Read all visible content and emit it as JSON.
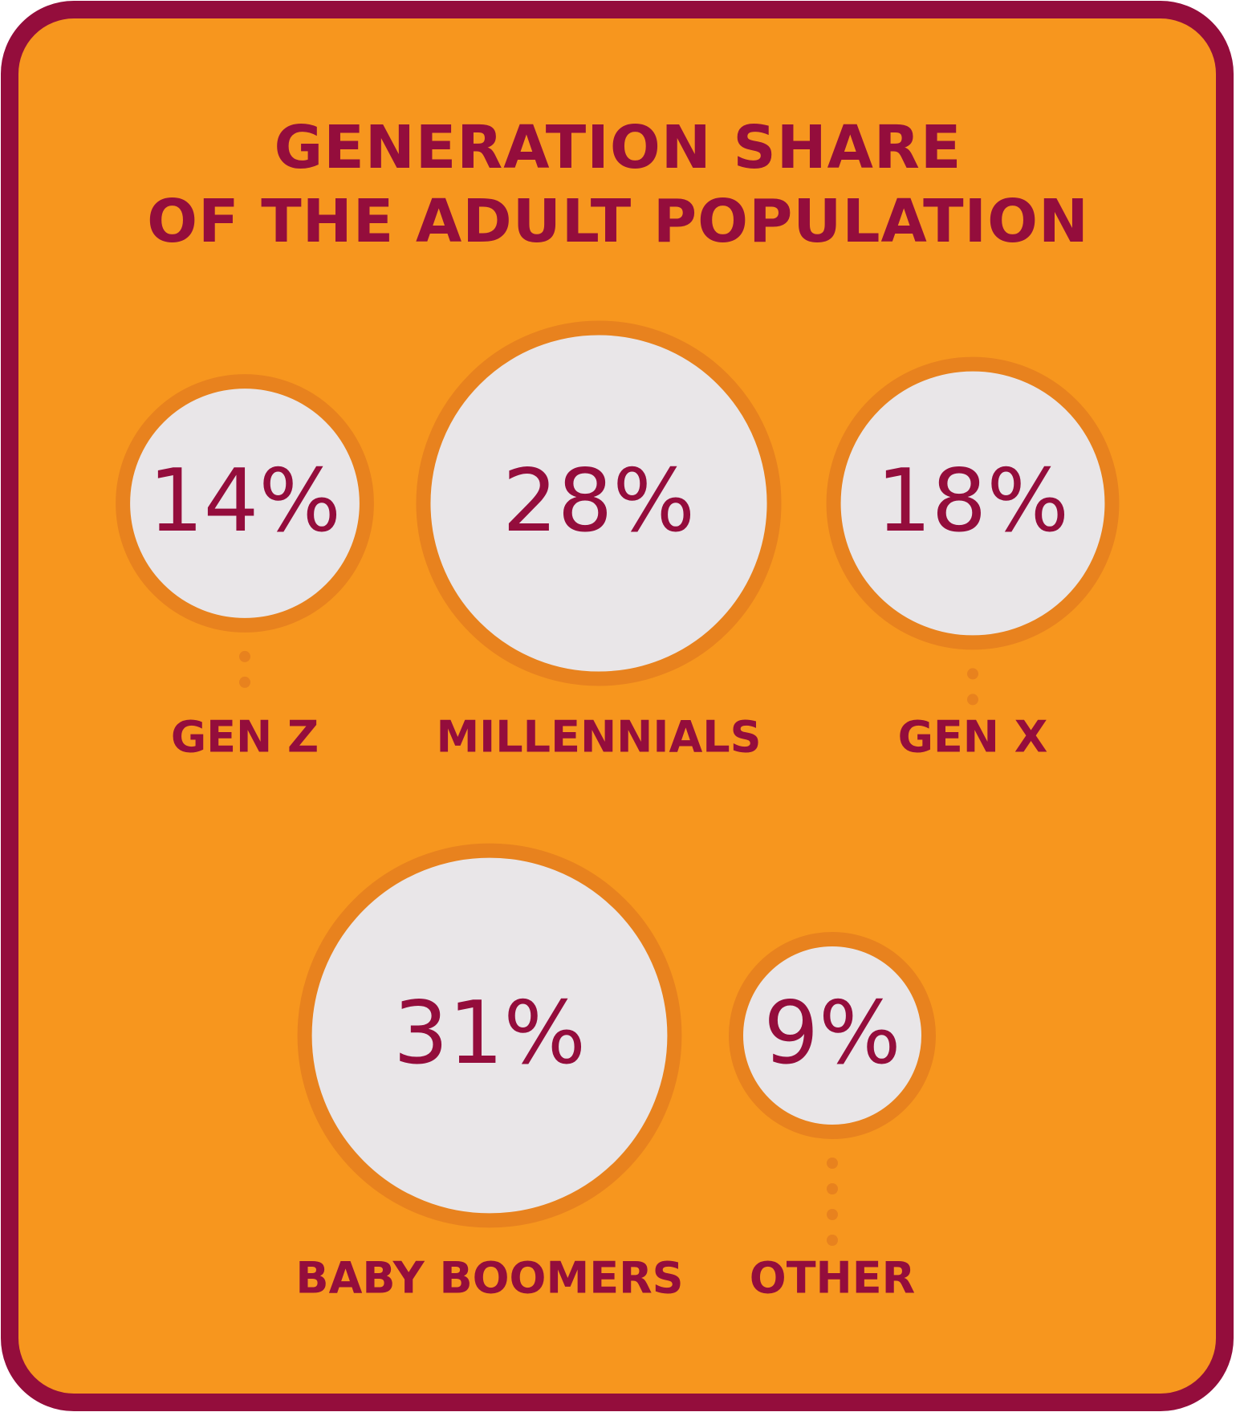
{
  "chart_data": {
    "type": "bubble",
    "title": "GENERATION SHARE\nOF THE ADULT POPULATION",
    "categories": [
      "GEN Z",
      "MILLENNIALS",
      "GEN X",
      "BABY BOOMERS",
      "OTHER"
    ],
    "values": [
      14,
      28,
      18,
      31,
      9
    ],
    "value_labels": [
      "14%",
      "28%",
      "18%",
      "31%",
      "9%"
    ],
    "color": "#e9e6e8"
  }
}
